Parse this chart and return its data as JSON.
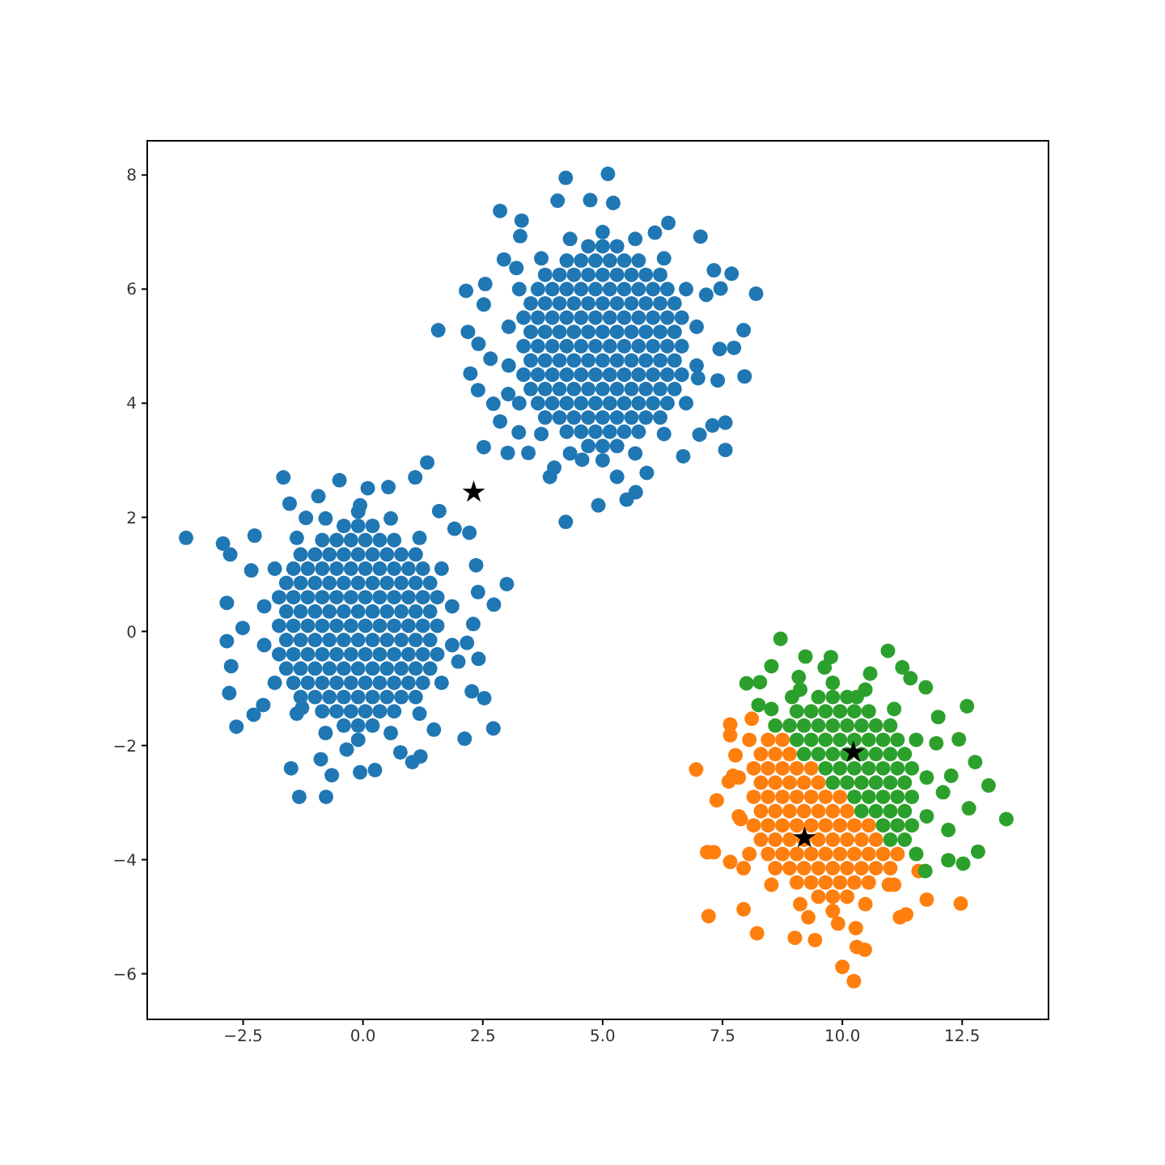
{
  "chart_data": {
    "type": "scatter",
    "xlim": [
      -4.5,
      14.3
    ],
    "ylim": [
      -6.8,
      8.6
    ],
    "xticks": [
      {
        "value": -2.5,
        "label": "−2.5"
      },
      {
        "value": 0,
        "label": "0.0"
      },
      2.5,
      {
        "value": 5,
        "label": "5.0"
      },
      7.5,
      {
        "value": 10,
        "label": "10.0"
      },
      12.5
    ],
    "yticks": [
      {
        "value": -6,
        "label": "−6"
      },
      {
        "value": -4,
        "label": "−4"
      },
      {
        "value": -2,
        "label": "−2"
      },
      0,
      2,
      4,
      6,
      8
    ],
    "series": [
      {
        "color": "#1f77b4",
        "marker": "circle",
        "x": [
          -0.4,
          -0.1,
          0.2,
          -0.85,
          -0.55,
          -0.25,
          0.05,
          0.35,
          0.65,
          -1.3,
          -1,
          -0.7,
          -0.4,
          -0.1,
          0.2,
          0.5,
          0.8,
          1.1,
          -1.45,
          -1.15,
          -0.85,
          -0.55,
          -0.25,
          0.05,
          0.35,
          0.65,
          0.95,
          1.25,
          -1.6,
          -1.3,
          -1,
          -0.7,
          -0.4,
          -0.1,
          0.2,
          0.5,
          0.8,
          1.1,
          1.4,
          -1.75,
          -1.45,
          -1.15,
          -0.85,
          -0.55,
          -0.25,
          0.05,
          0.35,
          0.65,
          0.95,
          1.25,
          1.55,
          -1.6,
          -1.3,
          -1,
          -0.7,
          -0.4,
          -0.1,
          0.2,
          0.5,
          0.8,
          1.1,
          1.4,
          -1.75,
          -1.45,
          -1.15,
          -0.85,
          -0.55,
          -0.25,
          0.05,
          0.35,
          0.65,
          0.95,
          1.25,
          1.55,
          -1.6,
          -1.3,
          -1,
          -0.7,
          -0.4,
          -0.1,
          0.2,
          0.5,
          0.8,
          1.1,
          1.4,
          -1.75,
          -1.45,
          -1.15,
          -0.85,
          -0.55,
          -0.25,
          0.05,
          0.35,
          0.65,
          0.95,
          1.25,
          1.55,
          -1.6,
          -1.3,
          -1,
          -0.7,
          -0.4,
          -0.1,
          0.2,
          0.5,
          0.8,
          1.1,
          1.4,
          -1.45,
          -1.15,
          -0.85,
          -0.55,
          -0.25,
          0.05,
          0.35,
          0.65,
          0.95,
          1.25,
          -1.3,
          -1,
          -0.7,
          -0.4,
          -0.1,
          0.2,
          0.5,
          0.8,
          1.1,
          -0.85,
          -0.55,
          -0.25,
          0.05,
          0.35,
          0.65,
          -0.4,
          -0.1,
          0.2,
          1.86,
          1.64,
          1.18,
          0.58,
          -0.1,
          -0.78,
          -1.38,
          -1.84,
          -2.06,
          -2.06,
          -1.84,
          -1.38,
          -0.78,
          -0.1,
          0.58,
          1.18,
          1.64,
          1.86,
          -3.69,
          -2.92,
          -2.77,
          -2.26,
          -1.66,
          -1.53,
          -0.49,
          0.1,
          0.53,
          -0.93,
          -0.06,
          1.09,
          1.34,
          -1.19,
          -2.84,
          -2.33,
          -2.51,
          -2.84,
          -2.75,
          -2.79,
          -2.64,
          -2.28,
          -2.08,
          -1.5,
          -1.33,
          -0.77,
          -0.88,
          -0.65,
          -0.06,
          0.25,
          -0.34,
          0.78,
          1.2,
          1.03,
          2.12,
          2.72,
          2.53,
          2.27,
          3,
          2.73,
          2.4,
          2.36,
          2.22,
          1.91,
          1.59,
          2.41,
          2.17,
          1.99,
          2.3,
          1.48,
          -1.27,
          4.7,
          5,
          5.3,
          4.25,
          4.55,
          4.85,
          5.15,
          5.45,
          5.75,
          3.8,
          4.1,
          4.4,
          4.7,
          5,
          5.3,
          5.6,
          5.9,
          6.2,
          3.65,
          3.95,
          4.25,
          4.55,
          4.85,
          5.15,
          5.45,
          5.75,
          6.05,
          6.35,
          3.5,
          3.8,
          4.1,
          4.4,
          4.7,
          5,
          5.3,
          5.6,
          5.9,
          6.2,
          6.5,
          3.35,
          3.65,
          3.95,
          4.25,
          4.55,
          4.85,
          5.15,
          5.45,
          5.75,
          6.05,
          6.35,
          6.65,
          3.5,
          3.8,
          4.1,
          4.4,
          4.7,
          5,
          5.3,
          5.6,
          5.9,
          6.2,
          6.5,
          3.35,
          3.65,
          3.95,
          4.25,
          4.55,
          4.85,
          5.15,
          5.45,
          5.75,
          6.05,
          6.35,
          6.65,
          3.5,
          3.8,
          4.1,
          4.4,
          4.7,
          5,
          5.3,
          5.6,
          5.9,
          6.2,
          6.5,
          3.35,
          3.65,
          3.95,
          4.25,
          4.55,
          4.85,
          5.15,
          5.45,
          5.75,
          6.05,
          6.35,
          6.65,
          3.5,
          3.8,
          4.1,
          4.4,
          4.7,
          5,
          5.3,
          5.6,
          5.9,
          6.2,
          6.5,
          3.65,
          3.95,
          4.25,
          4.55,
          4.85,
          5.15,
          5.45,
          5.75,
          6.05,
          6.35,
          3.8,
          4.1,
          4.4,
          4.7,
          5,
          5.3,
          5.6,
          5.9,
          6.2,
          4.25,
          4.55,
          4.85,
          5.15,
          5.45,
          5.75,
          4.7,
          5,
          5.3,
          6.96,
          6.74,
          6.28,
          5.68,
          5,
          4.32,
          3.72,
          3.26,
          3.04,
          3.04,
          3.26,
          3.72,
          4.32,
          5,
          5.68,
          6.28,
          6.74,
          6.96,
          4.23,
          5.11,
          2.86,
          4.06,
          4.74,
          5.22,
          3.31,
          3.28,
          7.04,
          6.37,
          6.09,
          7.32,
          7.69,
          8.2,
          7.46,
          7.16,
          7.94,
          7.74,
          7.44,
          7.96,
          7.4,
          6.99,
          7.56,
          7.29,
          7.56,
          7.02,
          6.68,
          5.92,
          5.69,
          5.5,
          4.91,
          4.23,
          5.3,
          3.9,
          3.99,
          4.57,
          3.45,
          3.02,
          2.52,
          2.72,
          2.4,
          2.24,
          2.86,
          1.57,
          2.19,
          2.41,
          2.15,
          2.55,
          2.52,
          2.94,
          3.2,
          2.66,
          3.03,
          3.25
        ],
        "values": [
          -1.65,
          -1.65,
          -1.65,
          -1.4,
          -1.4,
          -1.4,
          -1.4,
          -1.4,
          -1.4,
          -1.15,
          -1.15,
          -1.15,
          -1.15,
          -1.15,
          -1.15,
          -1.15,
          -1.15,
          -1.15,
          -0.9,
          -0.9,
          -0.9,
          -0.9,
          -0.9,
          -0.9,
          -0.9,
          -0.9,
          -0.9,
          -0.9,
          -0.65,
          -0.65,
          -0.65,
          -0.65,
          -0.65,
          -0.65,
          -0.65,
          -0.65,
          -0.65,
          -0.65,
          -0.65,
          -0.4,
          -0.4,
          -0.4,
          -0.4,
          -0.4,
          -0.4,
          -0.4,
          -0.4,
          -0.4,
          -0.4,
          -0.4,
          -0.4,
          -0.15,
          -0.15,
          -0.15,
          -0.15,
          -0.15,
          -0.15,
          -0.15,
          -0.15,
          -0.15,
          -0.15,
          -0.15,
          0.1,
          0.1,
          0.1,
          0.1,
          0.1,
          0.1,
          0.1,
          0.1,
          0.1,
          0.1,
          0.1,
          0.1,
          0.35,
          0.35,
          0.35,
          0.35,
          0.35,
          0.35,
          0.35,
          0.35,
          0.35,
          0.35,
          0.35,
          0.6,
          0.6,
          0.6,
          0.6,
          0.6,
          0.6,
          0.6,
          0.6,
          0.6,
          0.6,
          0.6,
          0.6,
          0.85,
          0.85,
          0.85,
          0.85,
          0.85,
          0.85,
          0.85,
          0.85,
          0.85,
          0.85,
          0.85,
          1.1,
          1.1,
          1.1,
          1.1,
          1.1,
          1.1,
          1.1,
          1.1,
          1.1,
          1.1,
          1.35,
          1.35,
          1.35,
          1.35,
          1.35,
          1.35,
          1.35,
          1.35,
          1.35,
          1.6,
          1.6,
          1.6,
          1.6,
          1.6,
          1.6,
          1.85,
          1.85,
          1.85,
          0.44,
          1.1,
          1.64,
          1.98,
          2.1,
          1.98,
          1.64,
          1.1,
          0.44,
          -0.24,
          -0.9,
          -1.44,
          -1.78,
          -1.9,
          -1.78,
          -1.44,
          -0.9,
          -0.24,
          1.64,
          1.54,
          1.35,
          1.68,
          2.7,
          2.24,
          2.65,
          2.51,
          2.53,
          2.37,
          2.21,
          2.7,
          2.96,
          1.99,
          0.5,
          1.07,
          0.06,
          -0.17,
          -0.61,
          -1.08,
          -1.67,
          -1.46,
          -1.29,
          -2.4,
          -2.9,
          -2.9,
          -2.24,
          -2.52,
          -2.47,
          -2.43,
          -2.07,
          -2.12,
          -2.19,
          -2.29,
          -1.88,
          -1.7,
          -1.17,
          -1.05,
          0.83,
          0.47,
          0.69,
          1.16,
          1.73,
          1.8,
          2.11,
          -0.48,
          -0.2,
          -0.53,
          0.13,
          -1.72,
          -1.34,
          3.25,
          3.25,
          3.25,
          3.5,
          3.5,
          3.5,
          3.5,
          3.5,
          3.5,
          3.75,
          3.75,
          3.75,
          3.75,
          3.75,
          3.75,
          3.75,
          3.75,
          3.75,
          4,
          4,
          4,
          4,
          4,
          4,
          4,
          4,
          4,
          4,
          4.25,
          4.25,
          4.25,
          4.25,
          4.25,
          4.25,
          4.25,
          4.25,
          4.25,
          4.25,
          4.25,
          4.5,
          4.5,
          4.5,
          4.5,
          4.5,
          4.5,
          4.5,
          4.5,
          4.5,
          4.5,
          4.5,
          4.5,
          4.75,
          4.75,
          4.75,
          4.75,
          4.75,
          4.75,
          4.75,
          4.75,
          4.75,
          4.75,
          4.75,
          5,
          5,
          5,
          5,
          5,
          5,
          5,
          5,
          5,
          5,
          5,
          5,
          5.25,
          5.25,
          5.25,
          5.25,
          5.25,
          5.25,
          5.25,
          5.25,
          5.25,
          5.25,
          5.25,
          5.5,
          5.5,
          5.5,
          5.5,
          5.5,
          5.5,
          5.5,
          5.5,
          5.5,
          5.5,
          5.5,
          5.5,
          5.75,
          5.75,
          5.75,
          5.75,
          5.75,
          5.75,
          5.75,
          5.75,
          5.75,
          5.75,
          5.75,
          6,
          6,
          6,
          6,
          6,
          6,
          6,
          6,
          6,
          6,
          6.25,
          6.25,
          6.25,
          6.25,
          6.25,
          6.25,
          6.25,
          6.25,
          6.25,
          6.5,
          6.5,
          6.5,
          6.5,
          6.5,
          6.5,
          6.75,
          6.75,
          6.75,
          5.34,
          6,
          6.54,
          6.88,
          7,
          6.88,
          6.54,
          6,
          5.34,
          4.66,
          4,
          3.46,
          3.12,
          3,
          3.12,
          3.46,
          4,
          4.66,
          7.95,
          8.02,
          7.37,
          7.55,
          7.56,
          7.51,
          7.2,
          6.93,
          6.92,
          7.16,
          6.99,
          6.33,
          6.27,
          5.92,
          6.01,
          5.9,
          5.28,
          4.97,
          4.95,
          4.47,
          4.4,
          4.44,
          3.66,
          3.61,
          3.18,
          3.45,
          3.07,
          2.78,
          2.44,
          2.31,
          2.21,
          1.92,
          2.71,
          2.71,
          2.87,
          3.01,
          3.13,
          3.13,
          3.23,
          3.99,
          4.23,
          4.52,
          3.68,
          5.28,
          5.25,
          5.04,
          5.97,
          6.09,
          5.73,
          6.52,
          6.37,
          4.78,
          4.16,
          3.49
        ]
      },
      {
        "color": "#ff7f0e",
        "marker": "circle",
        "x": [
          9.5,
          9.8,
          10.1,
          9.05,
          9.35,
          9.65,
          9.95,
          10.25,
          10.55,
          8.6,
          8.9,
          9.2,
          9.5,
          9.8,
          10.1,
          10.4,
          10.7,
          11,
          8.45,
          8.75,
          9.05,
          9.35,
          9.65,
          9.95,
          10.25,
          10.55,
          10.85,
          11.15,
          8.3,
          8.6,
          8.9,
          9.2,
          9.5,
          9.8,
          10.1,
          10.4,
          10.7,
          8.15,
          8.45,
          8.75,
          9.05,
          9.35,
          9.65,
          9.95,
          10.25,
          10.55,
          8.3,
          8.6,
          8.9,
          9.2,
          9.5,
          9.8,
          10.1,
          8.15,
          8.45,
          8.75,
          9.05,
          9.35,
          9.65,
          9.95,
          8.3,
          8.6,
          8.9,
          9.2,
          9.5,
          8.15,
          8.45,
          8.75,
          9.05,
          9.35,
          8.3,
          8.6,
          8.9,
          8.45,
          8.75,
          8.06,
          7.84,
          7.84,
          8.06,
          8.52,
          9.12,
          9.8,
          10.48,
          11.08,
          6.95,
          7.38,
          7.63,
          7.66,
          7.66,
          7.77,
          7.88,
          7.18,
          7.32,
          7.66,
          7.94,
          7.21,
          7.94,
          8.22,
          9.01,
          9.43,
          9.29,
          9.91,
          10.28,
          10.3,
          10.47,
          10,
          10.24,
          11.2,
          11.33,
          11.76,
          12.47,
          11.59,
          10.97,
          7.72,
          8.11
        ],
        "values": [
          -4.65,
          -4.65,
          -4.65,
          -4.4,
          -4.4,
          -4.4,
          -4.4,
          -4.4,
          -4.4,
          -4.15,
          -4.15,
          -4.15,
          -4.15,
          -4.15,
          -4.15,
          -4.15,
          -4.15,
          -4.15,
          -3.9,
          -3.9,
          -3.9,
          -3.9,
          -3.9,
          -3.9,
          -3.9,
          -3.9,
          -3.9,
          -3.9,
          -3.65,
          -3.65,
          -3.65,
          -3.65,
          -3.65,
          -3.65,
          -3.65,
          -3.65,
          -3.65,
          -3.4,
          -3.4,
          -3.4,
          -3.4,
          -3.4,
          -3.4,
          -3.4,
          -3.4,
          -3.4,
          -3.15,
          -3.15,
          -3.15,
          -3.15,
          -3.15,
          -3.15,
          -3.15,
          -2.9,
          -2.9,
          -2.9,
          -2.9,
          -2.9,
          -2.9,
          -2.9,
          -2.65,
          -2.65,
          -2.65,
          -2.65,
          -2.65,
          -2.4,
          -2.4,
          -2.4,
          -2.4,
          -2.4,
          -2.15,
          -2.15,
          -2.15,
          -1.9,
          -1.9,
          -1.9,
          -2.56,
          -3.24,
          -3.9,
          -4.44,
          -4.78,
          -4.9,
          -4.78,
          -4.44,
          -2.42,
          -2.96,
          -2.63,
          -1.63,
          -1.82,
          -2.17,
          -3.29,
          -3.87,
          -3.87,
          -4.04,
          -4.15,
          -4.99,
          -4.87,
          -5.29,
          -5.37,
          -5.41,
          -5.01,
          -5.12,
          -5.2,
          -5.53,
          -5.58,
          -5.88,
          -6.13,
          -5.01,
          -4.96,
          -4.7,
          -4.77,
          -4.2,
          -4.44,
          -2.53,
          -1.53
        ]
      },
      {
        "color": "#2ca02c",
        "marker": "circle",
        "x": [
          11,
          11.3,
          10.85,
          11.15,
          11.45,
          10.4,
          10.7,
          11,
          11.3,
          10.25,
          10.55,
          10.85,
          11.15,
          11.45,
          9.8,
          10.1,
          10.4,
          10.7,
          11,
          11.3,
          9.65,
          9.95,
          10.25,
          10.55,
          10.85,
          11.15,
          11.45,
          9.2,
          9.5,
          9.8,
          10.1,
          10.4,
          10.7,
          11,
          11.3,
          9.05,
          9.35,
          9.65,
          9.95,
          10.25,
          10.55,
          10.85,
          11.15,
          8.6,
          8.9,
          9.2,
          9.5,
          9.8,
          10.1,
          10.4,
          10.7,
          11,
          9.05,
          9.35,
          9.65,
          9.95,
          10.25,
          10.55,
          9.5,
          9.8,
          10.1,
          11.76,
          11.54,
          11.08,
          10.48,
          9.8,
          9.12,
          8.52,
          11.54,
          11.76,
          8.71,
          9.23,
          9.76,
          10.95,
          8.52,
          8,
          8.28,
          9.63,
          10.58,
          11.25,
          11.42,
          11.74,
          12.6,
          12,
          12.43,
          12.77,
          13.05,
          13.42,
          12.64,
          12.21,
          12.83,
          12.52,
          12.21,
          11.73,
          8.95,
          8.25,
          9.09,
          10.3,
          12.27,
          12.1,
          11.96
        ],
        "values": [
          -3.65,
          -3.65,
          -3.4,
          -3.4,
          -3.4,
          -3.15,
          -3.15,
          -3.15,
          -3.15,
          -2.9,
          -2.9,
          -2.9,
          -2.9,
          -2.9,
          -2.65,
          -2.65,
          -2.65,
          -2.65,
          -2.65,
          -2.65,
          -2.4,
          -2.4,
          -2.4,
          -2.4,
          -2.4,
          -2.4,
          -2.4,
          -2.15,
          -2.15,
          -2.15,
          -2.15,
          -2.15,
          -2.15,
          -2.15,
          -2.15,
          -1.9,
          -1.9,
          -1.9,
          -1.9,
          -1.9,
          -1.9,
          -1.9,
          -1.9,
          -1.65,
          -1.65,
          -1.65,
          -1.65,
          -1.65,
          -1.65,
          -1.65,
          -1.65,
          -1.65,
          -1.4,
          -1.4,
          -1.4,
          -1.4,
          -1.4,
          -1.4,
          -1.15,
          -1.15,
          -1.15,
          -2.56,
          -1.9,
          -1.36,
          -1.02,
          -0.9,
          -1.02,
          -1.36,
          -3.9,
          -3.24,
          -0.13,
          -0.44,
          -0.45,
          -0.34,
          -0.61,
          -0.91,
          -0.89,
          -0.63,
          -0.74,
          -0.63,
          -0.82,
          -0.98,
          -1.31,
          -1.5,
          -1.89,
          -2.29,
          -2.7,
          -3.29,
          -3.1,
          -3.48,
          -3.86,
          -4.07,
          -4.01,
          -4.2,
          -1.15,
          -1.29,
          -0.8,
          -1.15,
          -2.53,
          -2.82,
          -1.96
        ]
      },
      {
        "color": "#000000",
        "marker": "star",
        "x": [
          2.31,
          10.23,
          9.21
        ],
        "values": [
          2.44,
          -2.12,
          -3.62
        ]
      }
    ]
  }
}
